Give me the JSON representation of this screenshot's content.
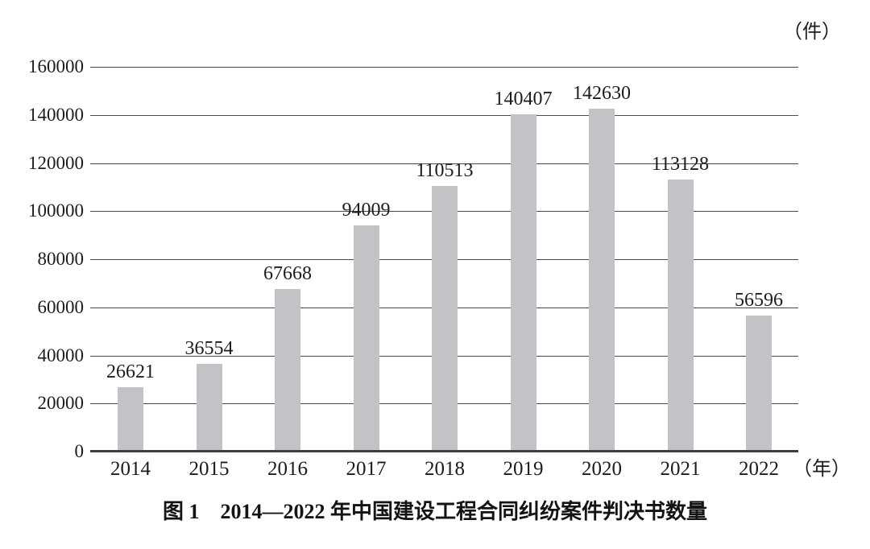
{
  "chart_data": {
    "type": "bar",
    "categories": [
      "2014",
      "2015",
      "2016",
      "2017",
      "2018",
      "2019",
      "2020",
      "2021",
      "2022"
    ],
    "values": [
      26621,
      36554,
      67668,
      94009,
      110513,
      140407,
      142630,
      113128,
      56596
    ],
    "title": "图 1　2014—2022 年中国建设工程合同纠纷案件判决书数量",
    "xlabel": "（年）",
    "ylabel": "（件）",
    "ylim": [
      0,
      160000
    ],
    "ytick_step": 20000,
    "yticks": [
      160000,
      140000,
      120000,
      100000,
      80000,
      60000,
      40000,
      20000,
      0
    ],
    "grid": true,
    "legend_position": "none",
    "data_labels_shown": true,
    "colors": {
      "bar": "#c1c3c6",
      "grid_line": "#4a4a4a",
      "axis_line": "#3f3f3f",
      "text": "#1c1c1c",
      "background": "#ffffff"
    }
  }
}
